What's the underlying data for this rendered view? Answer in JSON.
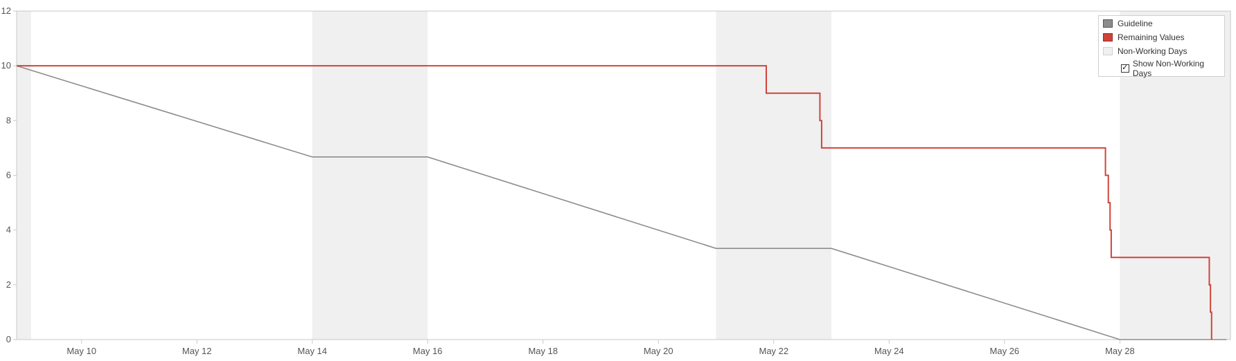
{
  "chart_data": {
    "type": "line",
    "y_ticks": [
      "0",
      "2",
      "4",
      "6",
      "8",
      "10",
      "12"
    ],
    "ylim": [
      0,
      12
    ],
    "x_ticks": [
      "May 10",
      "May 12",
      "May 14",
      "May 16",
      "May 18",
      "May 20",
      "May 22",
      "May 24",
      "May 26",
      "May 28"
    ],
    "x_tick_days": [
      10,
      12,
      14,
      16,
      18,
      20,
      22,
      24,
      26,
      28
    ],
    "xlim": [
      "May 8 21:00",
      "May 29 22:00"
    ],
    "xlim_days": [
      8.875,
      29.917
    ],
    "grid": false,
    "legend_position": "top-right",
    "non_working_periods": [
      {
        "start": "May 8 21:00",
        "end": "May 9 03:00",
        "start_day": 8.875,
        "end_day": 9.125
      },
      {
        "start": "May 14",
        "end": "May 16",
        "start_day": 14.0,
        "end_day": 16.0
      },
      {
        "start": "May 21",
        "end": "May 23",
        "start_day": 21.0,
        "end_day": 23.0
      },
      {
        "start": "May 28",
        "end": "May 29 22:00",
        "start_day": 28.0,
        "end_day": 29.917
      }
    ],
    "series": [
      {
        "name": "Guideline",
        "color": "#8c8c8c",
        "points": [
          [
            8.875,
            10
          ],
          [
            14.0,
            6.67
          ],
          [
            16.0,
            6.67
          ],
          [
            21.0,
            3.33
          ],
          [
            23.0,
            3.33
          ],
          [
            28.0,
            0
          ],
          [
            29.85,
            0
          ]
        ]
      },
      {
        "name": "Remaining Values",
        "color": "#d0433a",
        "step": true,
        "points": [
          [
            8.875,
            10
          ],
          [
            21.87,
            10
          ],
          [
            21.87,
            9
          ],
          [
            22.8,
            9
          ],
          [
            22.8,
            8
          ],
          [
            22.83,
            8
          ],
          [
            22.83,
            7
          ],
          [
            27.75,
            7
          ],
          [
            27.75,
            6
          ],
          [
            27.8,
            6
          ],
          [
            27.8,
            5
          ],
          [
            27.83,
            5
          ],
          [
            27.83,
            4
          ],
          [
            27.85,
            4
          ],
          [
            27.85,
            3
          ],
          [
            29.55,
            3
          ],
          [
            29.55,
            2
          ],
          [
            29.57,
            2
          ],
          [
            29.57,
            1
          ],
          [
            29.59,
            1
          ],
          [
            29.59,
            0
          ]
        ]
      }
    ]
  },
  "legend": {
    "guideline_label": "Guideline",
    "remaining_label": "Remaining Values",
    "nonworking_label": "Non-Working Days",
    "show_nonworking_label": "Show Non-Working Days",
    "show_nonworking_checked": true,
    "colors": {
      "guideline": "#8c8c8c",
      "remaining": "#d0433a",
      "nonworking": "#f0f0f0"
    }
  }
}
